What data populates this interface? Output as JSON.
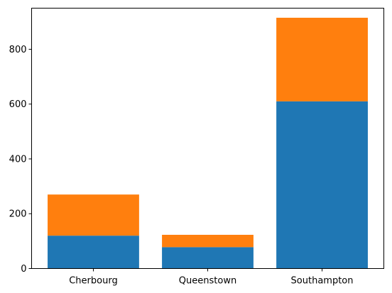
{
  "chart_data": {
    "type": "bar",
    "stacked": true,
    "categories": [
      "Cherbourg",
      "Queenstown",
      "Southampton"
    ],
    "series": [
      {
        "values": [
          120,
          78,
          610
        ],
        "color": "#1f77b4"
      },
      {
        "values": [
          150,
          45,
          305
        ],
        "color": "#ff7f0e"
      }
    ],
    "ylim": [
      0,
      950
    ],
    "yticks": [
      0,
      200,
      400,
      600,
      800
    ],
    "ytick_labels": [
      "0",
      "200",
      "400",
      "600",
      "800"
    ],
    "title": "",
    "xlabel": "",
    "ylabel": "",
    "grid": false,
    "legend": "none"
  }
}
